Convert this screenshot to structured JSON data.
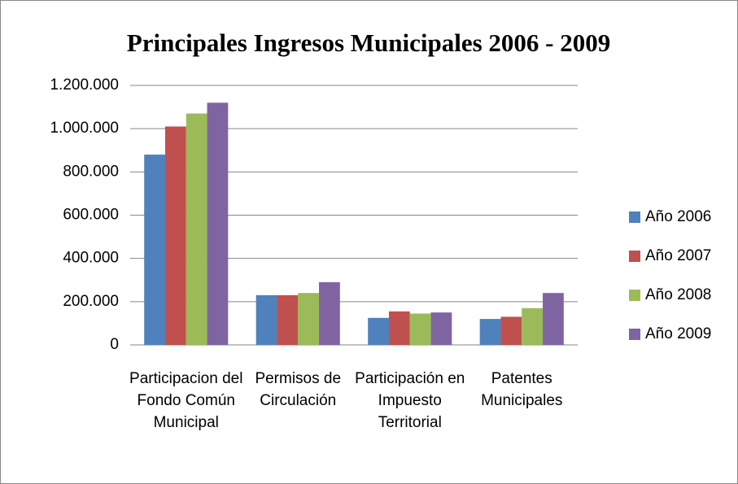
{
  "chart_data": {
    "type": "bar",
    "title": "Principales Ingresos Municipales 2006 - 2009",
    "categories": [
      "Participacion del Fondo Común Municipal",
      "Permisos de Circulación",
      "Participación en Impuesto Territorial",
      "Patentes Municipales"
    ],
    "series": [
      {
        "name": "Año 2006",
        "color": "#4f81bd",
        "values": [
          880000,
          230000,
          125000,
          120000
        ]
      },
      {
        "name": "Año 2007",
        "color": "#c0504d",
        "values": [
          1010000,
          230000,
          155000,
          130000
        ]
      },
      {
        "name": "Año 2008",
        "color": "#9bbb59",
        "values": [
          1070000,
          240000,
          145000,
          170000
        ]
      },
      {
        "name": "Año 2009",
        "color": "#8064a2",
        "values": [
          1120000,
          290000,
          150000,
          240000
        ]
      }
    ],
    "ylim": [
      0,
      1200000
    ],
    "yticks": [
      0,
      {
        "value": 200000,
        "label": "200.000"
      },
      {
        "value": 400000,
        "label": "400.000"
      },
      {
        "value": 600000,
        "label": "600.000"
      },
      {
        "value": 800000,
        "label": "800.000"
      },
      {
        "value": 1000000,
        "label": "1.000.000"
      },
      {
        "value": 1200000,
        "label": "1.200.000"
      }
    ],
    "grid": true,
    "legend": "right"
  }
}
